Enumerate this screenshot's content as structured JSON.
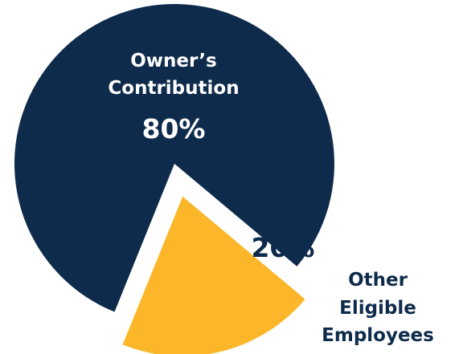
{
  "chart_data": {
    "type": "pie",
    "slices": [
      {
        "label_lines": [
          "Owner’s",
          "Contribution"
        ],
        "value_text": "80%",
        "value": 80,
        "color": "#0f2b4c",
        "text_color": "#ffffff"
      },
      {
        "label_lines": [
          "Other",
          "Eligible",
          "Employees"
        ],
        "value_text": "20%",
        "value": 20,
        "color": "#fbb729",
        "text_color": "#0f2b4c",
        "exploded": true
      }
    ]
  }
}
